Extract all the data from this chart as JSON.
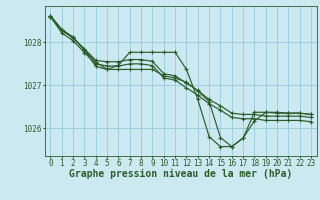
{
  "background_color": "#cce8f0",
  "grid_color": "#88c8d8",
  "line_color": "#2a5c2a",
  "xlabel": "Graphe pression niveau de la mer (hPa)",
  "xlabel_fontsize": 7.0,
  "tick_fontsize": 5.5,
  "yticks": [
    1026,
    1027,
    1028
  ],
  "xlim": [
    -0.5,
    23.5
  ],
  "ylim": [
    1025.35,
    1028.85
  ],
  "s1_x": [
    0,
    1,
    2,
    3,
    4,
    5,
    6,
    7,
    8,
    9,
    10,
    11,
    12,
    13,
    14,
    15,
    16,
    17,
    18,
    19,
    20,
    21,
    22,
    23
  ],
  "s1_y": [
    1028.6,
    1028.28,
    1028.1,
    1027.85,
    1027.58,
    1027.55,
    1027.55,
    1027.6,
    1027.6,
    1027.56,
    1027.27,
    1027.22,
    1027.05,
    1026.88,
    1026.67,
    1026.52,
    1026.35,
    1026.32,
    1026.32,
    1026.28,
    1026.28,
    1026.28,
    1026.28,
    1026.25
  ],
  "s2_x": [
    0,
    1,
    2,
    3,
    4,
    5,
    6,
    7,
    8,
    9,
    10,
    11,
    12,
    13,
    14,
    15,
    16,
    17,
    18,
    19,
    20,
    21,
    22,
    23
  ],
  "s2_y": [
    1028.6,
    1028.22,
    1028.04,
    1027.76,
    1027.5,
    1027.45,
    1027.45,
    1027.5,
    1027.5,
    1027.46,
    1027.17,
    1027.12,
    1026.94,
    1026.77,
    1026.57,
    1026.42,
    1026.25,
    1026.22,
    1026.22,
    1026.18,
    1026.18,
    1026.18,
    1026.18,
    1026.15
  ],
  "s3_x": [
    0,
    1,
    2,
    3,
    4,
    5,
    6,
    7,
    8,
    9,
    10,
    11,
    12,
    13,
    14,
    15,
    16,
    17,
    18,
    19,
    20,
    21,
    22,
    23
  ],
  "s3_y": [
    1028.62,
    1028.3,
    1028.12,
    1027.82,
    1027.44,
    1027.37,
    1027.47,
    1027.77,
    1027.77,
    1027.77,
    1027.77,
    1027.77,
    1027.37,
    1026.67,
    1025.8,
    1025.57,
    1025.57,
    1025.77,
    1026.17,
    1026.37,
    1026.37,
    1026.35,
    1026.35,
    1026.32
  ],
  "s4_x": [
    0,
    1,
    2,
    3,
    4,
    5,
    6,
    7,
    8,
    9,
    10,
    11,
    12,
    13,
    14,
    15,
    16,
    17,
    18,
    19,
    20,
    21,
    22,
    23
  ],
  "s4_y": [
    1028.62,
    1028.3,
    1028.12,
    1027.82,
    1027.54,
    1027.37,
    1027.37,
    1027.37,
    1027.37,
    1027.37,
    1027.22,
    1027.17,
    1027.07,
    1026.87,
    1026.62,
    1025.78,
    1025.57,
    1025.77,
    1026.37,
    1026.37,
    1026.35,
    1026.35,
    1026.35,
    1026.32
  ]
}
